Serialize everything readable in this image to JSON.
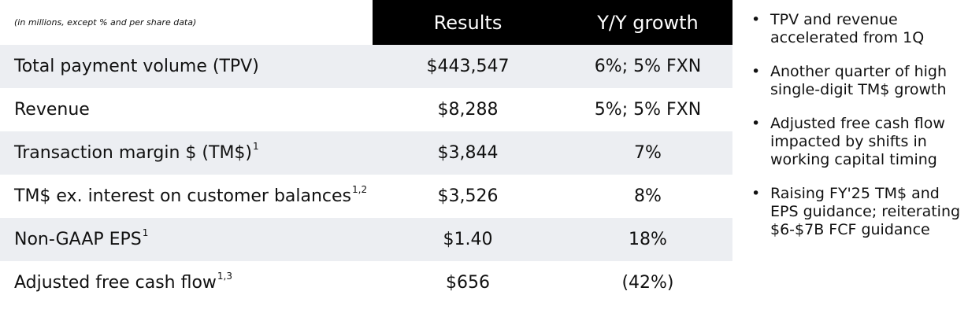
{
  "table": {
    "note": "(in millions, except % and per share data)",
    "columns": [
      "Results",
      "Y/Y growth"
    ],
    "rows": [
      {
        "label": "Total payment volume (TPV)",
        "results": "$443,547",
        "growth": "6%; 5% FXN"
      },
      {
        "label": "Revenue",
        "results": "$8,288",
        "growth": "5%; 5% FXN"
      },
      {
        "label": "Transaction margin $ (TM$)",
        "footnote": "1",
        "results": "$3,844",
        "growth": "7%"
      },
      {
        "label": "TM$ ex. interest on customer balances",
        "footnote": "1,2",
        "results": "$3,526",
        "growth": "8%"
      },
      {
        "label": "Non-GAAP EPS",
        "footnote": "1",
        "results": "$1.40",
        "growth": "18%"
      },
      {
        "label": "Adjusted free cash flow",
        "footnote": "1,3",
        "results": "$656",
        "growth": "(42%)"
      }
    ]
  },
  "bullets": [
    "TPV and revenue accelerated from 1Q",
    "Another quarter of high single-digit TM$ growth",
    "Adjusted free cash flow impacted by shifts in working capital timing",
    "Raising FY'25 TM$ and EPS guidance; reiterating $6-$7B FCF guidance"
  ]
}
